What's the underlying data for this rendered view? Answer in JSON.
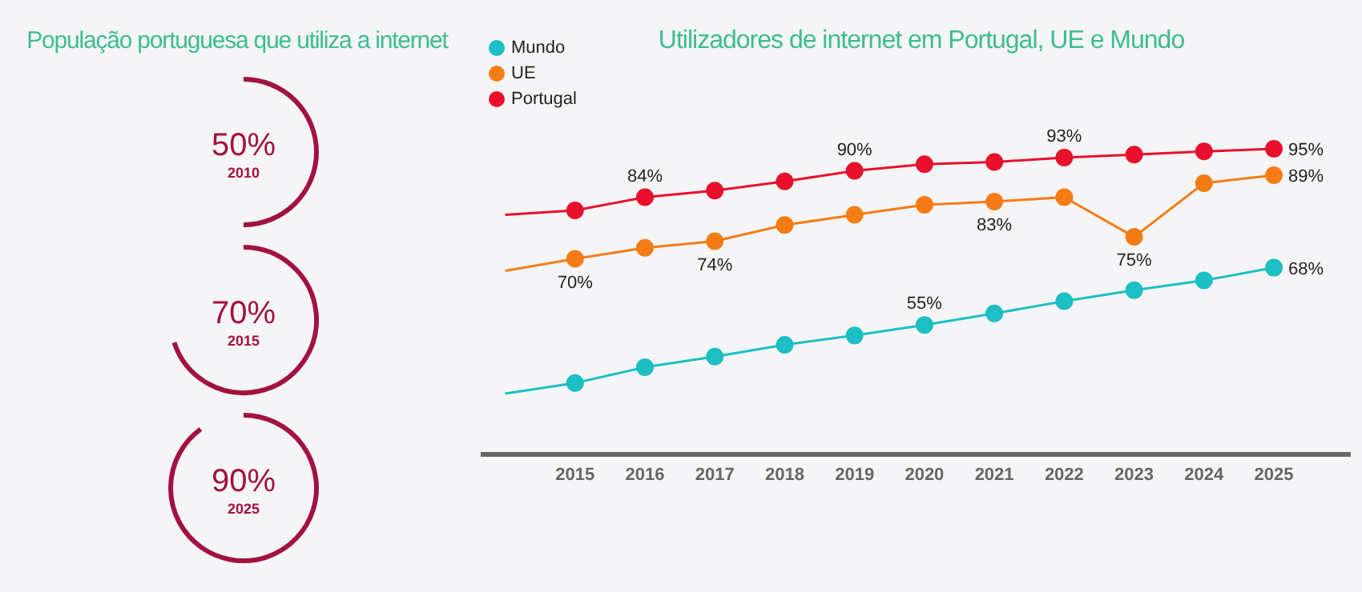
{
  "chart_data": [
    {
      "type": "other",
      "title": "População portuguesa que utiliza a internet",
      "categories": [
        "2010",
        "2015",
        "2025"
      ],
      "values": [
        50,
        70,
        90
      ],
      "value_labels": [
        "50%",
        "70%",
        "90%"
      ],
      "color": "#a3123f"
    },
    {
      "type": "line",
      "title": "Utilizadores de internet em Portugal, UE e Mundo",
      "xlim": [
        2013.65,
        2026.1
      ],
      "xticks": [
        2015,
        2016,
        2017,
        2018,
        2019,
        2020,
        2021,
        2022,
        2023,
        2024,
        2025
      ],
      "tick_labels": "x",
      "legend": "top left",
      "marker": "circle",
      "series": [
        {
          "name": "Mundo",
          "color": "#1bbfc4",
          "x": [
            2015,
            2016,
            2017,
            2018,
            2019,
            2020,
            2021,
            2022,
            2023,
            2024,
            2025
          ],
          "values": [
            41.8,
            45.4,
            47.8,
            50.5,
            52.6,
            55,
            57.6,
            60.4,
            62.9,
            65.1,
            68
          ],
          "value_labels": [
            null,
            null,
            null,
            null,
            null,
            "55%",
            null,
            null,
            null,
            null,
            "68%"
          ]
        },
        {
          "name": "UE",
          "color": "#f57c14",
          "x": [
            2015,
            2016,
            2017,
            2018,
            2019,
            2020,
            2021,
            2022,
            2023,
            2024,
            2025
          ],
          "values": [
            70,
            72.5,
            74,
            77.7,
            80,
            82.3,
            83,
            84,
            75,
            87.2,
            89
          ],
          "value_labels": [
            "70%",
            null,
            "74%",
            null,
            null,
            null,
            "83%",
            null,
            "75%",
            null,
            "89%"
          ]
        },
        {
          "name": "Portugal",
          "color": "#e8102a",
          "x": [
            2015,
            2016,
            2017,
            2018,
            2019,
            2020,
            2021,
            2022,
            2023,
            2024,
            2025
          ],
          "values": [
            81,
            84,
            85.5,
            87.6,
            90,
            91.5,
            92,
            93,
            93.7,
            94.4,
            95
          ],
          "value_labels": [
            null,
            "84%",
            null,
            null,
            "90%",
            null,
            null,
            "93%",
            null,
            null,
            "95%"
          ]
        },
        {
          "type": "line",
          "color": "#1bbfc4",
          "x": [
            2014,
            2015
          ],
          "values": [
            39.4,
            41.8
          ],
          "marker": "none"
        },
        {
          "type": "line",
          "color": "#f57c14",
          "x": [
            2014,
            2015
          ],
          "values": [
            67.3,
            70
          ],
          "marker": "none"
        },
        {
          "type": "line",
          "color": "#e8102a",
          "x": [
            2014,
            2015
          ],
          "values": [
            80,
            81
          ],
          "marker": "none"
        }
      ]
    }
  ]
}
